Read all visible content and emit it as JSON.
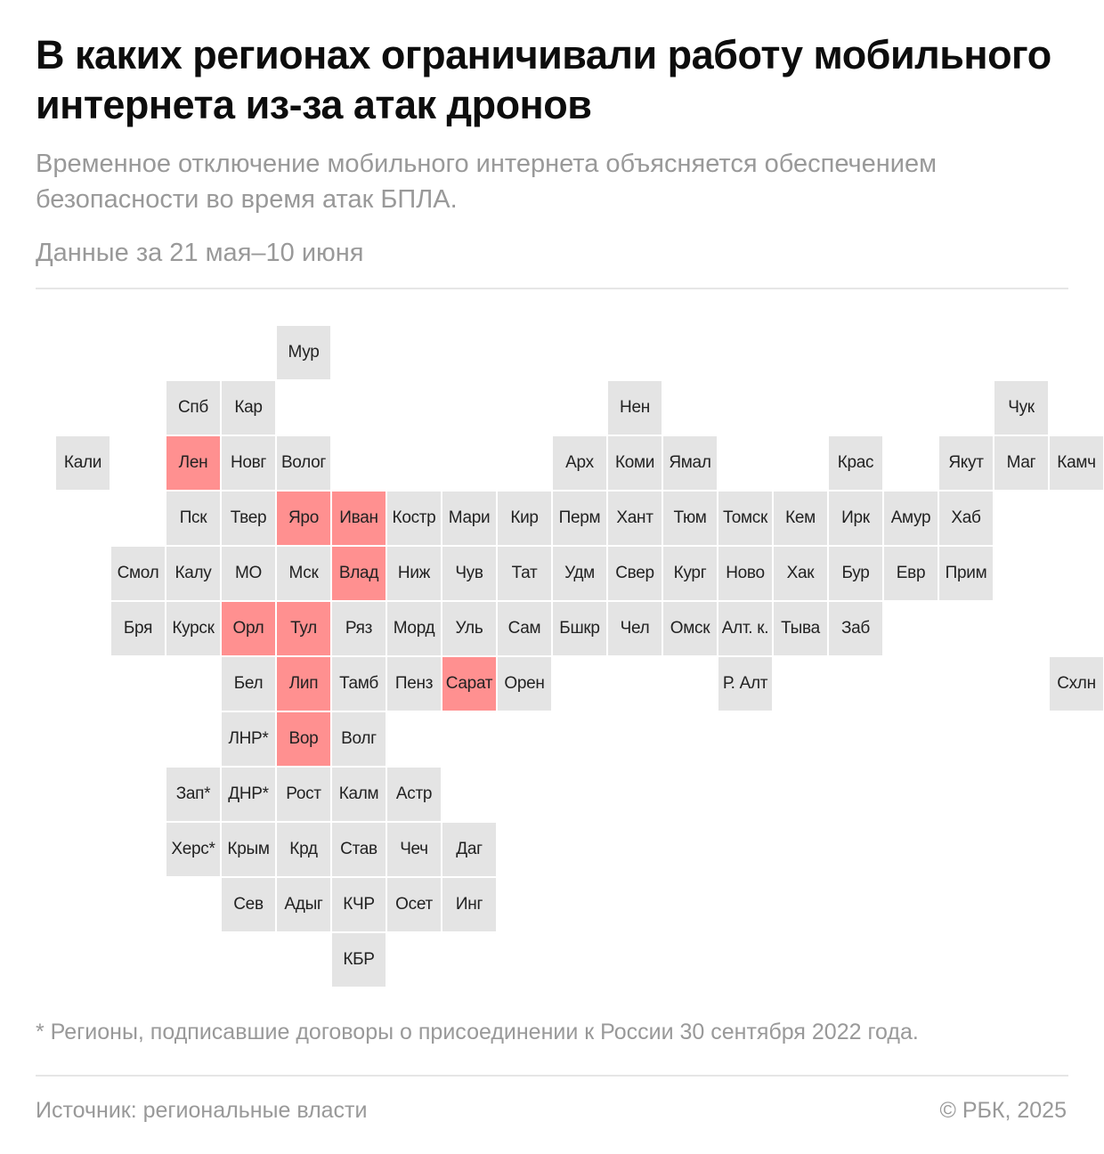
{
  "title": "В каких регионах ограничивали работу мобильного интернета из-за атак дронов",
  "subtitle": "Временное отключение мобильного интернета объясняется обеспечением безопасности во время атак БПЛА.",
  "period": "Данные за 21 мая–10 июня",
  "footnote": "* Регионы, подписавшие договоры о присоединении к России 30 сентября 2022 года.",
  "source": "Источник: региональные власти",
  "copyright": "© РБК, 2025",
  "colors": {
    "tile_default": "#e4e4e4",
    "tile_highlighted": "#ff9090"
  },
  "regions": [
    {
      "label": "Мур",
      "row": 0,
      "col": 4,
      "restricted": false
    },
    {
      "label": "Спб",
      "row": 1,
      "col": 2,
      "restricted": false
    },
    {
      "label": "Кар",
      "row": 1,
      "col": 3,
      "restricted": false
    },
    {
      "label": "Нен",
      "row": 1,
      "col": 10,
      "restricted": false
    },
    {
      "label": "Чук",
      "row": 1,
      "col": 17,
      "restricted": false
    },
    {
      "label": "Кали",
      "row": 2,
      "col": 0,
      "restricted": false
    },
    {
      "label": "Лен",
      "row": 2,
      "col": 2,
      "restricted": true
    },
    {
      "label": "Новг",
      "row": 2,
      "col": 3,
      "restricted": false
    },
    {
      "label": "Волог",
      "row": 2,
      "col": 4,
      "restricted": false
    },
    {
      "label": "Арх",
      "row": 2,
      "col": 9,
      "restricted": false
    },
    {
      "label": "Коми",
      "row": 2,
      "col": 10,
      "restricted": false
    },
    {
      "label": "Ямал",
      "row": 2,
      "col": 11,
      "restricted": false
    },
    {
      "label": "Крас",
      "row": 2,
      "col": 14,
      "restricted": false
    },
    {
      "label": "Якут",
      "row": 2,
      "col": 16,
      "restricted": false
    },
    {
      "label": "Маг",
      "row": 2,
      "col": 17,
      "restricted": false
    },
    {
      "label": "Камч",
      "row": 2,
      "col": 18,
      "restricted": false
    },
    {
      "label": "Пск",
      "row": 3,
      "col": 2,
      "restricted": false
    },
    {
      "label": "Твер",
      "row": 3,
      "col": 3,
      "restricted": false
    },
    {
      "label": "Яро",
      "row": 3,
      "col": 4,
      "restricted": true
    },
    {
      "label": "Иван",
      "row": 3,
      "col": 5,
      "restricted": true
    },
    {
      "label": "Костр",
      "row": 3,
      "col": 6,
      "restricted": false
    },
    {
      "label": "Мари",
      "row": 3,
      "col": 7,
      "restricted": false
    },
    {
      "label": "Кир",
      "row": 3,
      "col": 8,
      "restricted": false
    },
    {
      "label": "Перм",
      "row": 3,
      "col": 9,
      "restricted": false
    },
    {
      "label": "Хант",
      "row": 3,
      "col": 10,
      "restricted": false
    },
    {
      "label": "Тюм",
      "row": 3,
      "col": 11,
      "restricted": false
    },
    {
      "label": "Томск",
      "row": 3,
      "col": 12,
      "restricted": false
    },
    {
      "label": "Кем",
      "row": 3,
      "col": 13,
      "restricted": false
    },
    {
      "label": "Ирк",
      "row": 3,
      "col": 14,
      "restricted": false
    },
    {
      "label": "Амур",
      "row": 3,
      "col": 15,
      "restricted": false
    },
    {
      "label": "Хаб",
      "row": 3,
      "col": 16,
      "restricted": false
    },
    {
      "label": "Смол",
      "row": 4,
      "col": 1,
      "restricted": false
    },
    {
      "label": "Калу",
      "row": 4,
      "col": 2,
      "restricted": false
    },
    {
      "label": "МО",
      "row": 4,
      "col": 3,
      "restricted": false
    },
    {
      "label": "Мск",
      "row": 4,
      "col": 4,
      "restricted": false
    },
    {
      "label": "Влад",
      "row": 4,
      "col": 5,
      "restricted": true
    },
    {
      "label": "Ниж",
      "row": 4,
      "col": 6,
      "restricted": false
    },
    {
      "label": "Чув",
      "row": 4,
      "col": 7,
      "restricted": false
    },
    {
      "label": "Тат",
      "row": 4,
      "col": 8,
      "restricted": false
    },
    {
      "label": "Удм",
      "row": 4,
      "col": 9,
      "restricted": false
    },
    {
      "label": "Свер",
      "row": 4,
      "col": 10,
      "restricted": false
    },
    {
      "label": "Кург",
      "row": 4,
      "col": 11,
      "restricted": false
    },
    {
      "label": "Ново",
      "row": 4,
      "col": 12,
      "restricted": false
    },
    {
      "label": "Хак",
      "row": 4,
      "col": 13,
      "restricted": false
    },
    {
      "label": "Бур",
      "row": 4,
      "col": 14,
      "restricted": false
    },
    {
      "label": "Евр",
      "row": 4,
      "col": 15,
      "restricted": false
    },
    {
      "label": "Прим",
      "row": 4,
      "col": 16,
      "restricted": false
    },
    {
      "label": "Бря",
      "row": 5,
      "col": 1,
      "restricted": false
    },
    {
      "label": "Курск",
      "row": 5,
      "col": 2,
      "restricted": false
    },
    {
      "label": "Орл",
      "row": 5,
      "col": 3,
      "restricted": true
    },
    {
      "label": "Тул",
      "row": 5,
      "col": 4,
      "restricted": true
    },
    {
      "label": "Ряз",
      "row": 5,
      "col": 5,
      "restricted": false
    },
    {
      "label": "Морд",
      "row": 5,
      "col": 6,
      "restricted": false
    },
    {
      "label": "Уль",
      "row": 5,
      "col": 7,
      "restricted": false
    },
    {
      "label": "Сам",
      "row": 5,
      "col": 8,
      "restricted": false
    },
    {
      "label": "Бшкр",
      "row": 5,
      "col": 9,
      "restricted": false
    },
    {
      "label": "Чел",
      "row": 5,
      "col": 10,
      "restricted": false
    },
    {
      "label": "Омск",
      "row": 5,
      "col": 11,
      "restricted": false
    },
    {
      "label": "Алт. к.",
      "row": 5,
      "col": 12,
      "restricted": false
    },
    {
      "label": "Тыва",
      "row": 5,
      "col": 13,
      "restricted": false
    },
    {
      "label": "Заб",
      "row": 5,
      "col": 14,
      "restricted": false
    },
    {
      "label": "Бел",
      "row": 6,
      "col": 3,
      "restricted": false
    },
    {
      "label": "Лип",
      "row": 6,
      "col": 4,
      "restricted": true
    },
    {
      "label": "Тамб",
      "row": 6,
      "col": 5,
      "restricted": false
    },
    {
      "label": "Пенз",
      "row": 6,
      "col": 6,
      "restricted": false
    },
    {
      "label": "Сарат",
      "row": 6,
      "col": 7,
      "restricted": true
    },
    {
      "label": "Орен",
      "row": 6,
      "col": 8,
      "restricted": false
    },
    {
      "label": "Р. Алт",
      "row": 6,
      "col": 12,
      "restricted": false
    },
    {
      "label": "Схлн",
      "row": 6,
      "col": 18,
      "restricted": false
    },
    {
      "label": "ЛНР*",
      "row": 7,
      "col": 3,
      "restricted": false
    },
    {
      "label": "Вор",
      "row": 7,
      "col": 4,
      "restricted": true
    },
    {
      "label": "Волг",
      "row": 7,
      "col": 5,
      "restricted": false
    },
    {
      "label": "Зап*",
      "row": 8,
      "col": 2,
      "restricted": false
    },
    {
      "label": "ДНР*",
      "row": 8,
      "col": 3,
      "restricted": false
    },
    {
      "label": "Рост",
      "row": 8,
      "col": 4,
      "restricted": false
    },
    {
      "label": "Калм",
      "row": 8,
      "col": 5,
      "restricted": false
    },
    {
      "label": "Астр",
      "row": 8,
      "col": 6,
      "restricted": false
    },
    {
      "label": "Херс*",
      "row": 9,
      "col": 2,
      "restricted": false
    },
    {
      "label": "Крым",
      "row": 9,
      "col": 3,
      "restricted": false
    },
    {
      "label": "Крд",
      "row": 9,
      "col": 4,
      "restricted": false
    },
    {
      "label": "Став",
      "row": 9,
      "col": 5,
      "restricted": false
    },
    {
      "label": "Чеч",
      "row": 9,
      "col": 6,
      "restricted": false
    },
    {
      "label": "Даг",
      "row": 9,
      "col": 7,
      "restricted": false
    },
    {
      "label": "Сев",
      "row": 10,
      "col": 3,
      "restricted": false
    },
    {
      "label": "Адыг",
      "row": 10,
      "col": 4,
      "restricted": false
    },
    {
      "label": "КЧР",
      "row": 10,
      "col": 5,
      "restricted": false
    },
    {
      "label": "Осет",
      "row": 10,
      "col": 6,
      "restricted": false
    },
    {
      "label": "Инг",
      "row": 10,
      "col": 7,
      "restricted": false
    },
    {
      "label": "КБР",
      "row": 11,
      "col": 5,
      "restricted": false
    }
  ]
}
